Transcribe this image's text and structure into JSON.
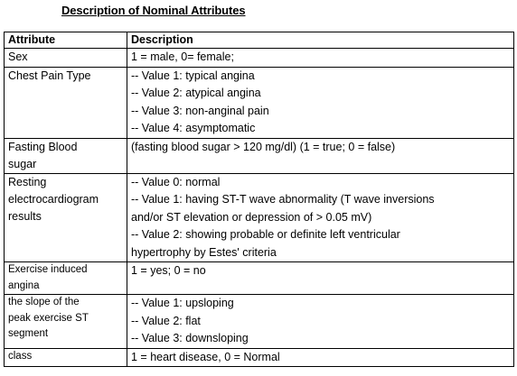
{
  "title": "Description of Nominal Attributes",
  "headers": {
    "attribute": "Attribute",
    "description": "Description"
  },
  "rows": [
    {
      "attribute": [
        "Sex"
      ],
      "description": [
        "1 = male, 0= female;"
      ]
    },
    {
      "attribute": [
        "Chest Pain Type"
      ],
      "description": [
        "-- Value 1: typical angina",
        "-- Value 2: atypical angina",
        "-- Value 3: non-anginal pain",
        "-- Value 4: asymptomatic"
      ]
    },
    {
      "attribute": [
        "Fasting Blood",
        "sugar"
      ],
      "description": [
        "(fasting blood sugar > 120 mg/dl) (1 = true; 0 = false)"
      ]
    },
    {
      "attribute": [
        "Resting",
        "electrocardiogram",
        "results"
      ],
      "description": [
        "-- Value 0: normal",
        "-- Value 1: having ST-T wave abnormality (T wave inversions",
        "and/or ST elevation or depression of > 0.05 mV)",
        "-- Value 2: showing probable or definite left ventricular",
        "hypertrophy by Estes' criteria"
      ]
    },
    {
      "attribute": [
        "Exercise induced",
        "angina"
      ],
      "description": [
        "1 = yes; 0 = no"
      ]
    },
    {
      "attribute": [
        "the slope of the",
        "peak exercise ST",
        "segment"
      ],
      "description": [
        "-- Value 1: upsloping",
        "-- Value 2: flat",
        "-- Value 3: downsloping"
      ]
    },
    {
      "attribute": [
        "class"
      ],
      "description": [
        "1 = heart disease, 0 = Normal"
      ]
    }
  ]
}
